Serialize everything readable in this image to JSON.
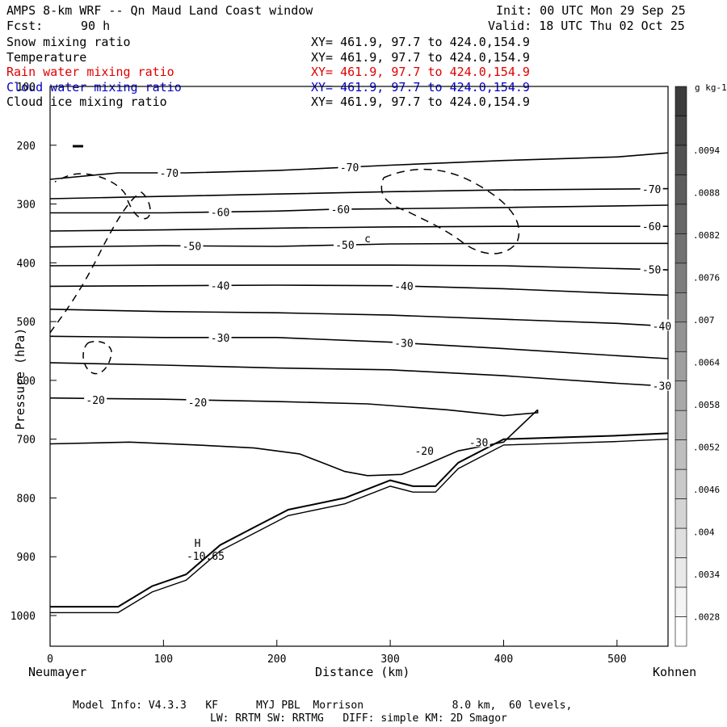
{
  "header": {
    "title": "AMPS 8-km WRF -- Qn Maud Land Coast window",
    "init": "Init: 00 UTC Mon 29 Sep 25",
    "fcst": "Fcst:",
    "fcst_hours": "90 h",
    "valid": "Valid: 18 UTC Thu 02 Oct 25"
  },
  "fields": [
    {
      "name": "Snow mixing ratio",
      "xy": "XY= 461.9, 97.7 to 424.0,154.9",
      "color": "#000000"
    },
    {
      "name": "Temperature",
      "xy": "XY= 461.9, 97.7 to 424.0,154.9",
      "color": "#000000"
    },
    {
      "name": "Rain water mixing ratio",
      "xy": "XY= 461.9, 97.7 to 424.0,154.9",
      "color": "#e00000"
    },
    {
      "name": "Cloud water mixing ratio",
      "xy": "XY= 461.9, 97.7 to 424.0,154.9",
      "color": "#0000c0"
    },
    {
      "name": "Cloud ice mixing ratio",
      "xy": "XY= 461.9, 97.7 to 424.0,154.9",
      "color": "#000000"
    }
  ],
  "footer": {
    "line1": "Model Info: V4.3.3   KF      MYJ PBL  Morrison              8.0 km,  60 levels,",
    "line2": "LW: RRTM SW: RRTMG   DIFF: simple KM: 2D Smagor"
  },
  "chart_data": {
    "type": "contour",
    "xlabel": "Distance (km)",
    "ylabel": "Pressure (hPa)",
    "x_endpoints": {
      "left": "Neumayer",
      "right": "Kohnen"
    },
    "xlim": [
      0,
      545
    ],
    "ylim": [
      1050,
      100
    ],
    "x_ticks": [
      0,
      100,
      200,
      300,
      400,
      500
    ],
    "y_ticks": [
      100,
      200,
      300,
      400,
      500,
      600,
      700,
      800,
      900,
      1000
    ],
    "colorbar": {
      "unit": "g kg-1",
      "labels": [
        ".0094",
        ".0088",
        ".0082",
        ".0076",
        ".007",
        ".0064",
        ".0058",
        ".0052",
        ".0046",
        ".004",
        ".0034",
        ".0028"
      ]
    },
    "temperature_contours": [
      {
        "level": -70,
        "points": [
          [
            0,
            258
          ],
          [
            60,
            247
          ],
          [
            120,
            247
          ],
          [
            200,
            243
          ],
          [
            300,
            234
          ],
          [
            400,
            226
          ],
          [
            500,
            220
          ],
          [
            545,
            213
          ]
        ]
      },
      {
        "level": -70,
        "points": [
          [
            0,
            291
          ],
          [
            100,
            287
          ],
          [
            200,
            283
          ],
          [
            300,
            279
          ],
          [
            400,
            276
          ],
          [
            545,
            274
          ]
        ]
      },
      {
        "level": -60,
        "points": [
          [
            0,
            315
          ],
          [
            100,
            315
          ],
          [
            200,
            312
          ],
          [
            250,
            309
          ],
          [
            300,
            308
          ],
          [
            400,
            306
          ],
          [
            545,
            302
          ]
        ]
      },
      {
        "level": -60,
        "points": [
          [
            0,
            346
          ],
          [
            100,
            344
          ],
          [
            200,
            341
          ],
          [
            300,
            339
          ],
          [
            400,
            338
          ],
          [
            545,
            338
          ]
        ]
      },
      {
        "level": -50,
        "points": [
          [
            0,
            373
          ],
          [
            100,
            371
          ],
          [
            200,
            372
          ],
          [
            300,
            368
          ],
          [
            400,
            367
          ],
          [
            545,
            367
          ]
        ]
      },
      {
        "level": -50,
        "points": [
          [
            0,
            405
          ],
          [
            100,
            404
          ],
          [
            200,
            404
          ],
          [
            300,
            404
          ],
          [
            400,
            405
          ],
          [
            545,
            412
          ]
        ]
      },
      {
        "level": -40,
        "points": [
          [
            0,
            440
          ],
          [
            100,
            439
          ],
          [
            200,
            438
          ],
          [
            300,
            439
          ],
          [
            400,
            444
          ],
          [
            500,
            452
          ],
          [
            545,
            455
          ]
        ]
      },
      {
        "level": -40,
        "points": [
          [
            0,
            479
          ],
          [
            100,
            483
          ],
          [
            200,
            485
          ],
          [
            300,
            489
          ],
          [
            400,
            496
          ],
          [
            500,
            503
          ],
          [
            545,
            508
          ]
        ]
      },
      {
        "level": -30,
        "points": [
          [
            0,
            525
          ],
          [
            100,
            527
          ],
          [
            200,
            527
          ],
          [
            300,
            535
          ],
          [
            400,
            546
          ],
          [
            500,
            558
          ],
          [
            545,
            563
          ]
        ]
      },
      {
        "level": -30,
        "points": [
          [
            0,
            570
          ],
          [
            100,
            574
          ],
          [
            200,
            579
          ],
          [
            300,
            582
          ],
          [
            400,
            592
          ],
          [
            500,
            605
          ],
          [
            545,
            610
          ]
        ]
      }
    ],
    "surface_terrain": [
      [
        0,
        985
      ],
      [
        30,
        985
      ],
      [
        60,
        985
      ],
      [
        90,
        950
      ],
      [
        120,
        930
      ],
      [
        150,
        880
      ],
      [
        180,
        850
      ],
      [
        210,
        820
      ],
      [
        260,
        800
      ],
      [
        300,
        770
      ],
      [
        320,
        780
      ],
      [
        340,
        780
      ],
      [
        360,
        740
      ],
      [
        400,
        700
      ],
      [
        450,
        697
      ],
      [
        500,
        694
      ],
      [
        545,
        690
      ]
    ],
    "max_label": {
      "text": "H",
      "value": "-10.65",
      "x": 130,
      "p": 900
    },
    "unlabeled_symbol": {
      "text": "c",
      "x": 280,
      "p": 365
    }
  }
}
